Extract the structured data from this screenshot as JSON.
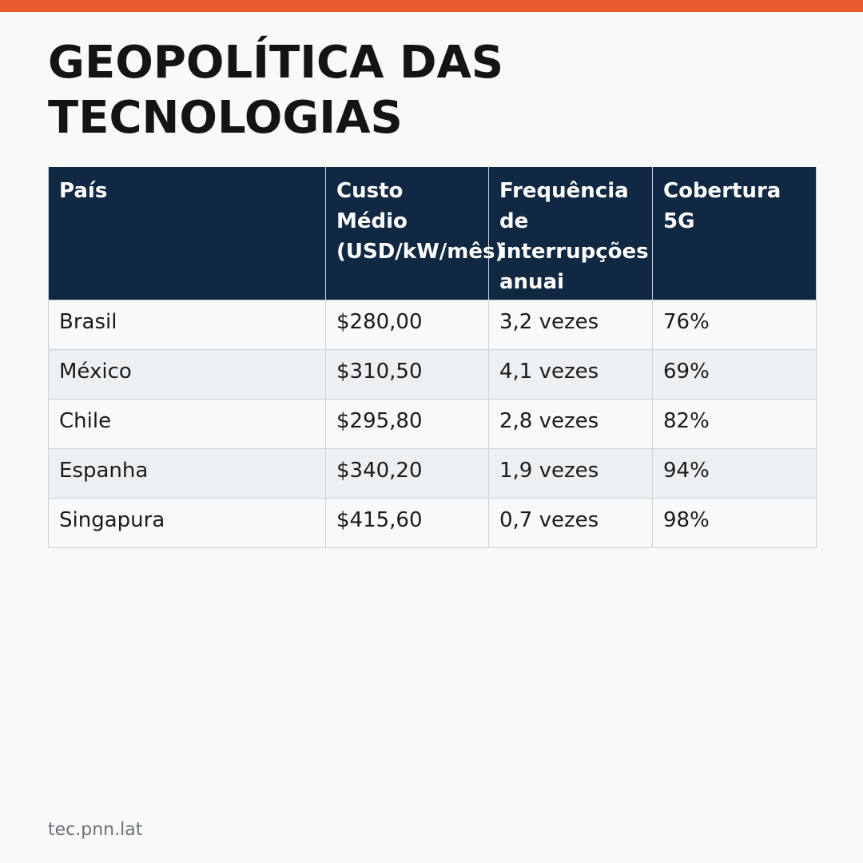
{
  "colors": {
    "accent_bar": "#e95c30",
    "header_background": "#112843",
    "header_text": "#ffffff",
    "row_stripe": "#edf0f3",
    "page_background": "#f9f9f7"
  },
  "title_lines": [
    "GEOPOLÍTICA DAS",
    "TECNOLOGIAS"
  ],
  "table": {
    "headers": [
      {
        "lines": [
          "País"
        ]
      },
      {
        "lines": [
          "Custo",
          "Médio",
          "(USD/kW/mês)"
        ]
      },
      {
        "lines": [
          "Frequência",
          "de",
          "interrupções",
          "anuai"
        ]
      },
      {
        "lines": [
          "Cobertura",
          "5G"
        ]
      }
    ],
    "rows": [
      [
        "Brasil",
        "$280,00",
        "3,2 vezes",
        "76%"
      ],
      [
        "México",
        "$310,50",
        "4,1 vezes",
        "69%"
      ],
      [
        "Chile",
        "$295,80",
        "2,8 vezes",
        "82%"
      ],
      [
        "Espanha",
        "$340,20",
        "1,9 vezes",
        "94%"
      ],
      [
        "Singapura",
        "$415,60",
        "0,7 vezes",
        "98%"
      ]
    ]
  },
  "footer": {
    "source": "tec.pnn.lat"
  }
}
